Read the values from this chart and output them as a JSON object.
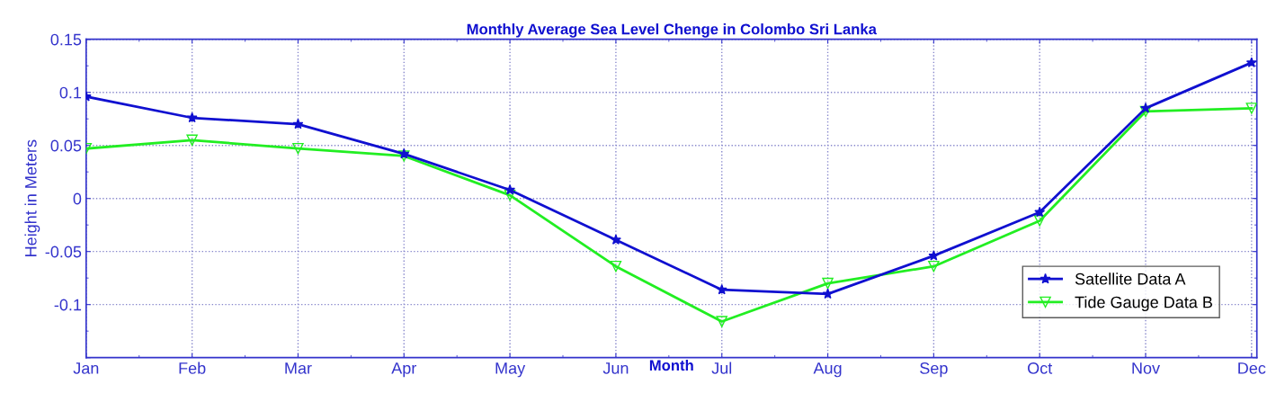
{
  "chart_data": {
    "type": "line",
    "title": "Monthly Average Sea Level Chenge in Colombo Sri Lanka",
    "xlabel": "Month",
    "ylabel": "Height in Meters",
    "categories": [
      "Jan",
      "Feb",
      "Mar",
      "Apr",
      "May",
      "Jun",
      "Jul",
      "Aug",
      "Sep",
      "Oct",
      "Nov",
      "Dec"
    ],
    "series": [
      {
        "name": "Satellite Data A",
        "color": "#1010d0",
        "marker": "star",
        "values": [
          0.096,
          0.076,
          0.07,
          0.042,
          0.008,
          -0.039,
          -0.086,
          -0.09,
          -0.054,
          -0.013,
          0.085,
          0.128
        ]
      },
      {
        "name": "Tide Gauge Data B",
        "color": "#22ee22",
        "marker": "triangle",
        "values": [
          0.047,
          0.055,
          0.047,
          0.04,
          0.003,
          -0.064,
          -0.116,
          -0.08,
          -0.064,
          -0.021,
          0.082,
          0.085
        ]
      }
    ],
    "ylim": [
      -0.15,
      0.15
    ],
    "yticks": [
      {
        "value": -0.15,
        "label": null
      },
      -0.1,
      -0.05,
      0,
      0.05,
      0.1,
      0.15
    ],
    "grid": true,
    "legend": "bottom right",
    "line_style": "solid"
  }
}
